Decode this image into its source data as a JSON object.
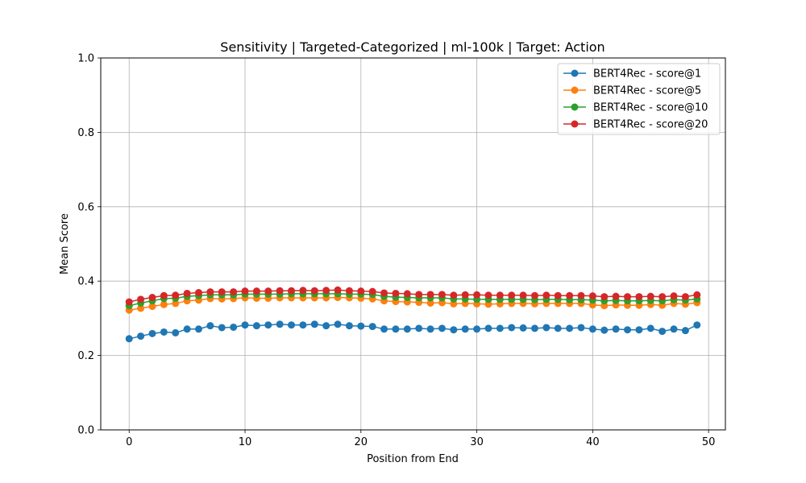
{
  "chart_data": {
    "type": "line",
    "title": "Sensitivity | Targeted-Categorized | ml-100k | Target: Action",
    "xlabel": "Position from End",
    "ylabel": "Mean Score",
    "xlim": [
      -2.45,
      51.45
    ],
    "ylim": [
      0.0,
      1.0
    ],
    "xticks": [
      0,
      10,
      20,
      30,
      40,
      50
    ],
    "yticks": [
      0.0,
      0.2,
      0.4,
      0.6,
      0.8,
      1.0
    ],
    "xtick_labels": [
      "0",
      "10",
      "20",
      "30",
      "40",
      "50"
    ],
    "ytick_labels": [
      "0.0",
      "0.2",
      "0.4",
      "0.6",
      "0.8",
      "1.0"
    ],
    "grid": true,
    "legend_position": "top-right",
    "x": [
      0,
      1,
      2,
      3,
      4,
      5,
      6,
      7,
      8,
      9,
      10,
      11,
      12,
      13,
      14,
      15,
      16,
      17,
      18,
      19,
      20,
      21,
      22,
      23,
      24,
      25,
      26,
      27,
      28,
      29,
      30,
      31,
      32,
      33,
      34,
      35,
      36,
      37,
      38,
      39,
      40,
      41,
      42,
      43,
      44,
      45,
      46,
      47,
      48,
      49
    ],
    "series": [
      {
        "name": "BERT4Rec - score@1",
        "color": "#1f77b4",
        "values": [
          0.245,
          0.252,
          0.259,
          0.263,
          0.261,
          0.271,
          0.271,
          0.28,
          0.275,
          0.276,
          0.282,
          0.28,
          0.282,
          0.284,
          0.282,
          0.282,
          0.284,
          0.28,
          0.284,
          0.28,
          0.279,
          0.278,
          0.271,
          0.271,
          0.271,
          0.273,
          0.271,
          0.273,
          0.269,
          0.271,
          0.271,
          0.273,
          0.273,
          0.275,
          0.274,
          0.273,
          0.275,
          0.273,
          0.273,
          0.275,
          0.271,
          0.268,
          0.271,
          0.269,
          0.269,
          0.273,
          0.265,
          0.271,
          0.267,
          0.282
        ]
      },
      {
        "name": "BERT4Rec - score@5",
        "color": "#ff7f0e",
        "values": [
          0.322,
          0.327,
          0.332,
          0.337,
          0.34,
          0.347,
          0.349,
          0.353,
          0.352,
          0.353,
          0.355,
          0.354,
          0.354,
          0.355,
          0.355,
          0.355,
          0.355,
          0.355,
          0.356,
          0.355,
          0.354,
          0.352,
          0.347,
          0.345,
          0.344,
          0.343,
          0.341,
          0.342,
          0.339,
          0.34,
          0.339,
          0.338,
          0.339,
          0.34,
          0.34,
          0.339,
          0.34,
          0.34,
          0.34,
          0.34,
          0.336,
          0.334,
          0.336,
          0.335,
          0.335,
          0.337,
          0.335,
          0.34,
          0.338,
          0.342
        ]
      },
      {
        "name": "BERT4Rec - score@10",
        "color": "#2ca02c",
        "values": [
          0.334,
          0.341,
          0.347,
          0.353,
          0.354,
          0.359,
          0.361,
          0.363,
          0.363,
          0.363,
          0.365,
          0.365,
          0.365,
          0.365,
          0.366,
          0.366,
          0.366,
          0.366,
          0.366,
          0.365,
          0.365,
          0.364,
          0.359,
          0.357,
          0.356,
          0.355,
          0.355,
          0.355,
          0.352,
          0.352,
          0.351,
          0.351,
          0.351,
          0.351,
          0.351,
          0.35,
          0.351,
          0.351,
          0.35,
          0.35,
          0.349,
          0.347,
          0.348,
          0.347,
          0.347,
          0.348,
          0.347,
          0.35,
          0.349,
          0.352
        ]
      },
      {
        "name": "BERT4Rec - score@20",
        "color": "#d62728",
        "values": [
          0.344,
          0.351,
          0.356,
          0.361,
          0.362,
          0.367,
          0.369,
          0.371,
          0.371,
          0.371,
          0.373,
          0.373,
          0.373,
          0.374,
          0.374,
          0.375,
          0.374,
          0.375,
          0.376,
          0.374,
          0.373,
          0.372,
          0.368,
          0.367,
          0.366,
          0.364,
          0.364,
          0.364,
          0.362,
          0.363,
          0.363,
          0.362,
          0.362,
          0.362,
          0.362,
          0.361,
          0.362,
          0.361,
          0.361,
          0.361,
          0.36,
          0.358,
          0.359,
          0.358,
          0.358,
          0.359,
          0.358,
          0.36,
          0.358,
          0.363
        ]
      }
    ]
  }
}
